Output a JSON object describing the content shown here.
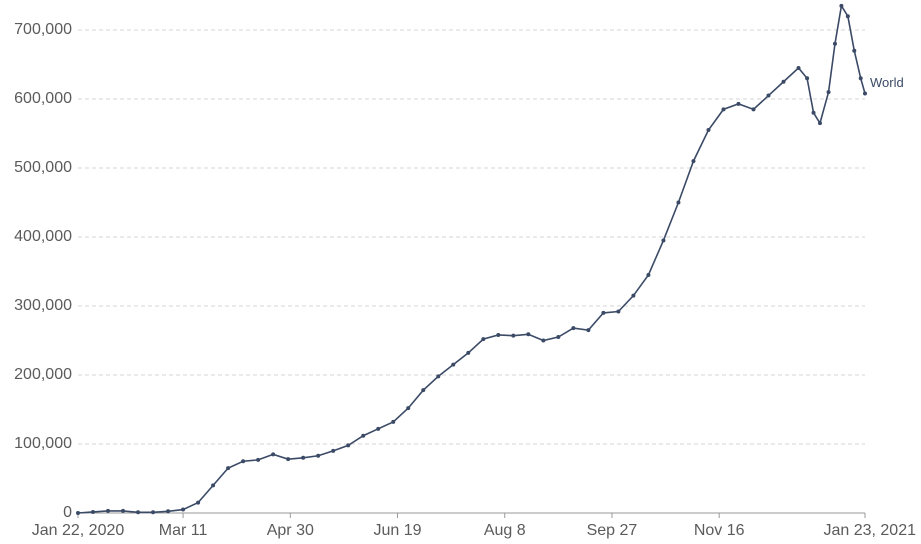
{
  "chart_data": {
    "type": "line",
    "x": [
      "2020-01-22",
      "2020-01-29",
      "2020-02-05",
      "2020-02-12",
      "2020-02-19",
      "2020-02-26",
      "2020-03-04",
      "2020-03-11",
      "2020-03-18",
      "2020-03-25",
      "2020-04-01",
      "2020-04-08",
      "2020-04-15",
      "2020-04-22",
      "2020-04-29",
      "2020-05-06",
      "2020-05-13",
      "2020-05-20",
      "2020-05-27",
      "2020-06-03",
      "2020-06-10",
      "2020-06-17",
      "2020-06-24",
      "2020-07-01",
      "2020-07-08",
      "2020-07-15",
      "2020-07-22",
      "2020-07-29",
      "2020-08-05",
      "2020-08-12",
      "2020-08-19",
      "2020-08-26",
      "2020-09-02",
      "2020-09-09",
      "2020-09-16",
      "2020-09-23",
      "2020-09-30",
      "2020-10-07",
      "2020-10-14",
      "2020-10-21",
      "2020-10-28",
      "2020-11-04",
      "2020-11-11",
      "2020-11-18",
      "2020-11-25",
      "2020-12-02",
      "2020-12-09",
      "2020-12-16",
      "2020-12-23",
      "2020-12-27",
      "2020-12-30",
      "2021-01-02",
      "2021-01-06",
      "2021-01-09",
      "2021-01-12",
      "2021-01-15",
      "2021-01-18",
      "2021-01-21",
      "2021-01-23"
    ],
    "series": [
      {
        "name": "World",
        "color": "#3b4a66",
        "values": [
          0,
          1500,
          3000,
          3000,
          1000,
          1000,
          2500,
          5000,
          15000,
          40000,
          65000,
          75000,
          77000,
          85000,
          78000,
          80000,
          83000,
          90000,
          98000,
          112000,
          122000,
          132000,
          152000,
          178000,
          198000,
          215000,
          232000,
          252000,
          258000,
          257000,
          259000,
          250000,
          255000,
          268000,
          265000,
          290000,
          292000,
          315000,
          345000,
          395000,
          450000,
          510000,
          555000,
          585000,
          593000,
          585000,
          605000,
          625000,
          645000,
          630000,
          580000,
          565000,
          610000,
          680000,
          735000,
          720000,
          670000,
          630000,
          608000
        ]
      }
    ],
    "xlim": [
      "2020-01-22",
      "2021-01-23"
    ],
    "xticks": [
      {
        "value": "2020-01-22",
        "label": "Jan 22, 2020"
      },
      {
        "value": "2020-03-11",
        "label": "Mar 11"
      },
      {
        "value": "2020-04-30",
        "label": "Apr 30"
      },
      {
        "value": "2020-06-19",
        "label": "Jun 19"
      },
      {
        "value": "2020-08-08",
        "label": "Aug 8"
      },
      {
        "value": "2020-09-27",
        "label": "Sep 27"
      },
      {
        "value": "2020-11-16",
        "label": "Nov 16"
      },
      {
        "value": "2021-01-23",
        "label": "Jan 23, 2021"
      }
    ],
    "ylim": [
      0,
      740000
    ],
    "yticks": [
      0,
      {
        "value": 100000,
        "label": "100,000"
      },
      {
        "value": 200000,
        "label": "200,000"
      },
      {
        "value": 300000,
        "label": "300,000"
      },
      {
        "value": 400000,
        "label": "400,000"
      },
      {
        "value": 500000,
        "label": "500,000"
      },
      {
        "value": 600000,
        "label": "600,000"
      },
      {
        "value": 700000,
        "label": "700,000"
      }
    ],
    "grid": true
  }
}
